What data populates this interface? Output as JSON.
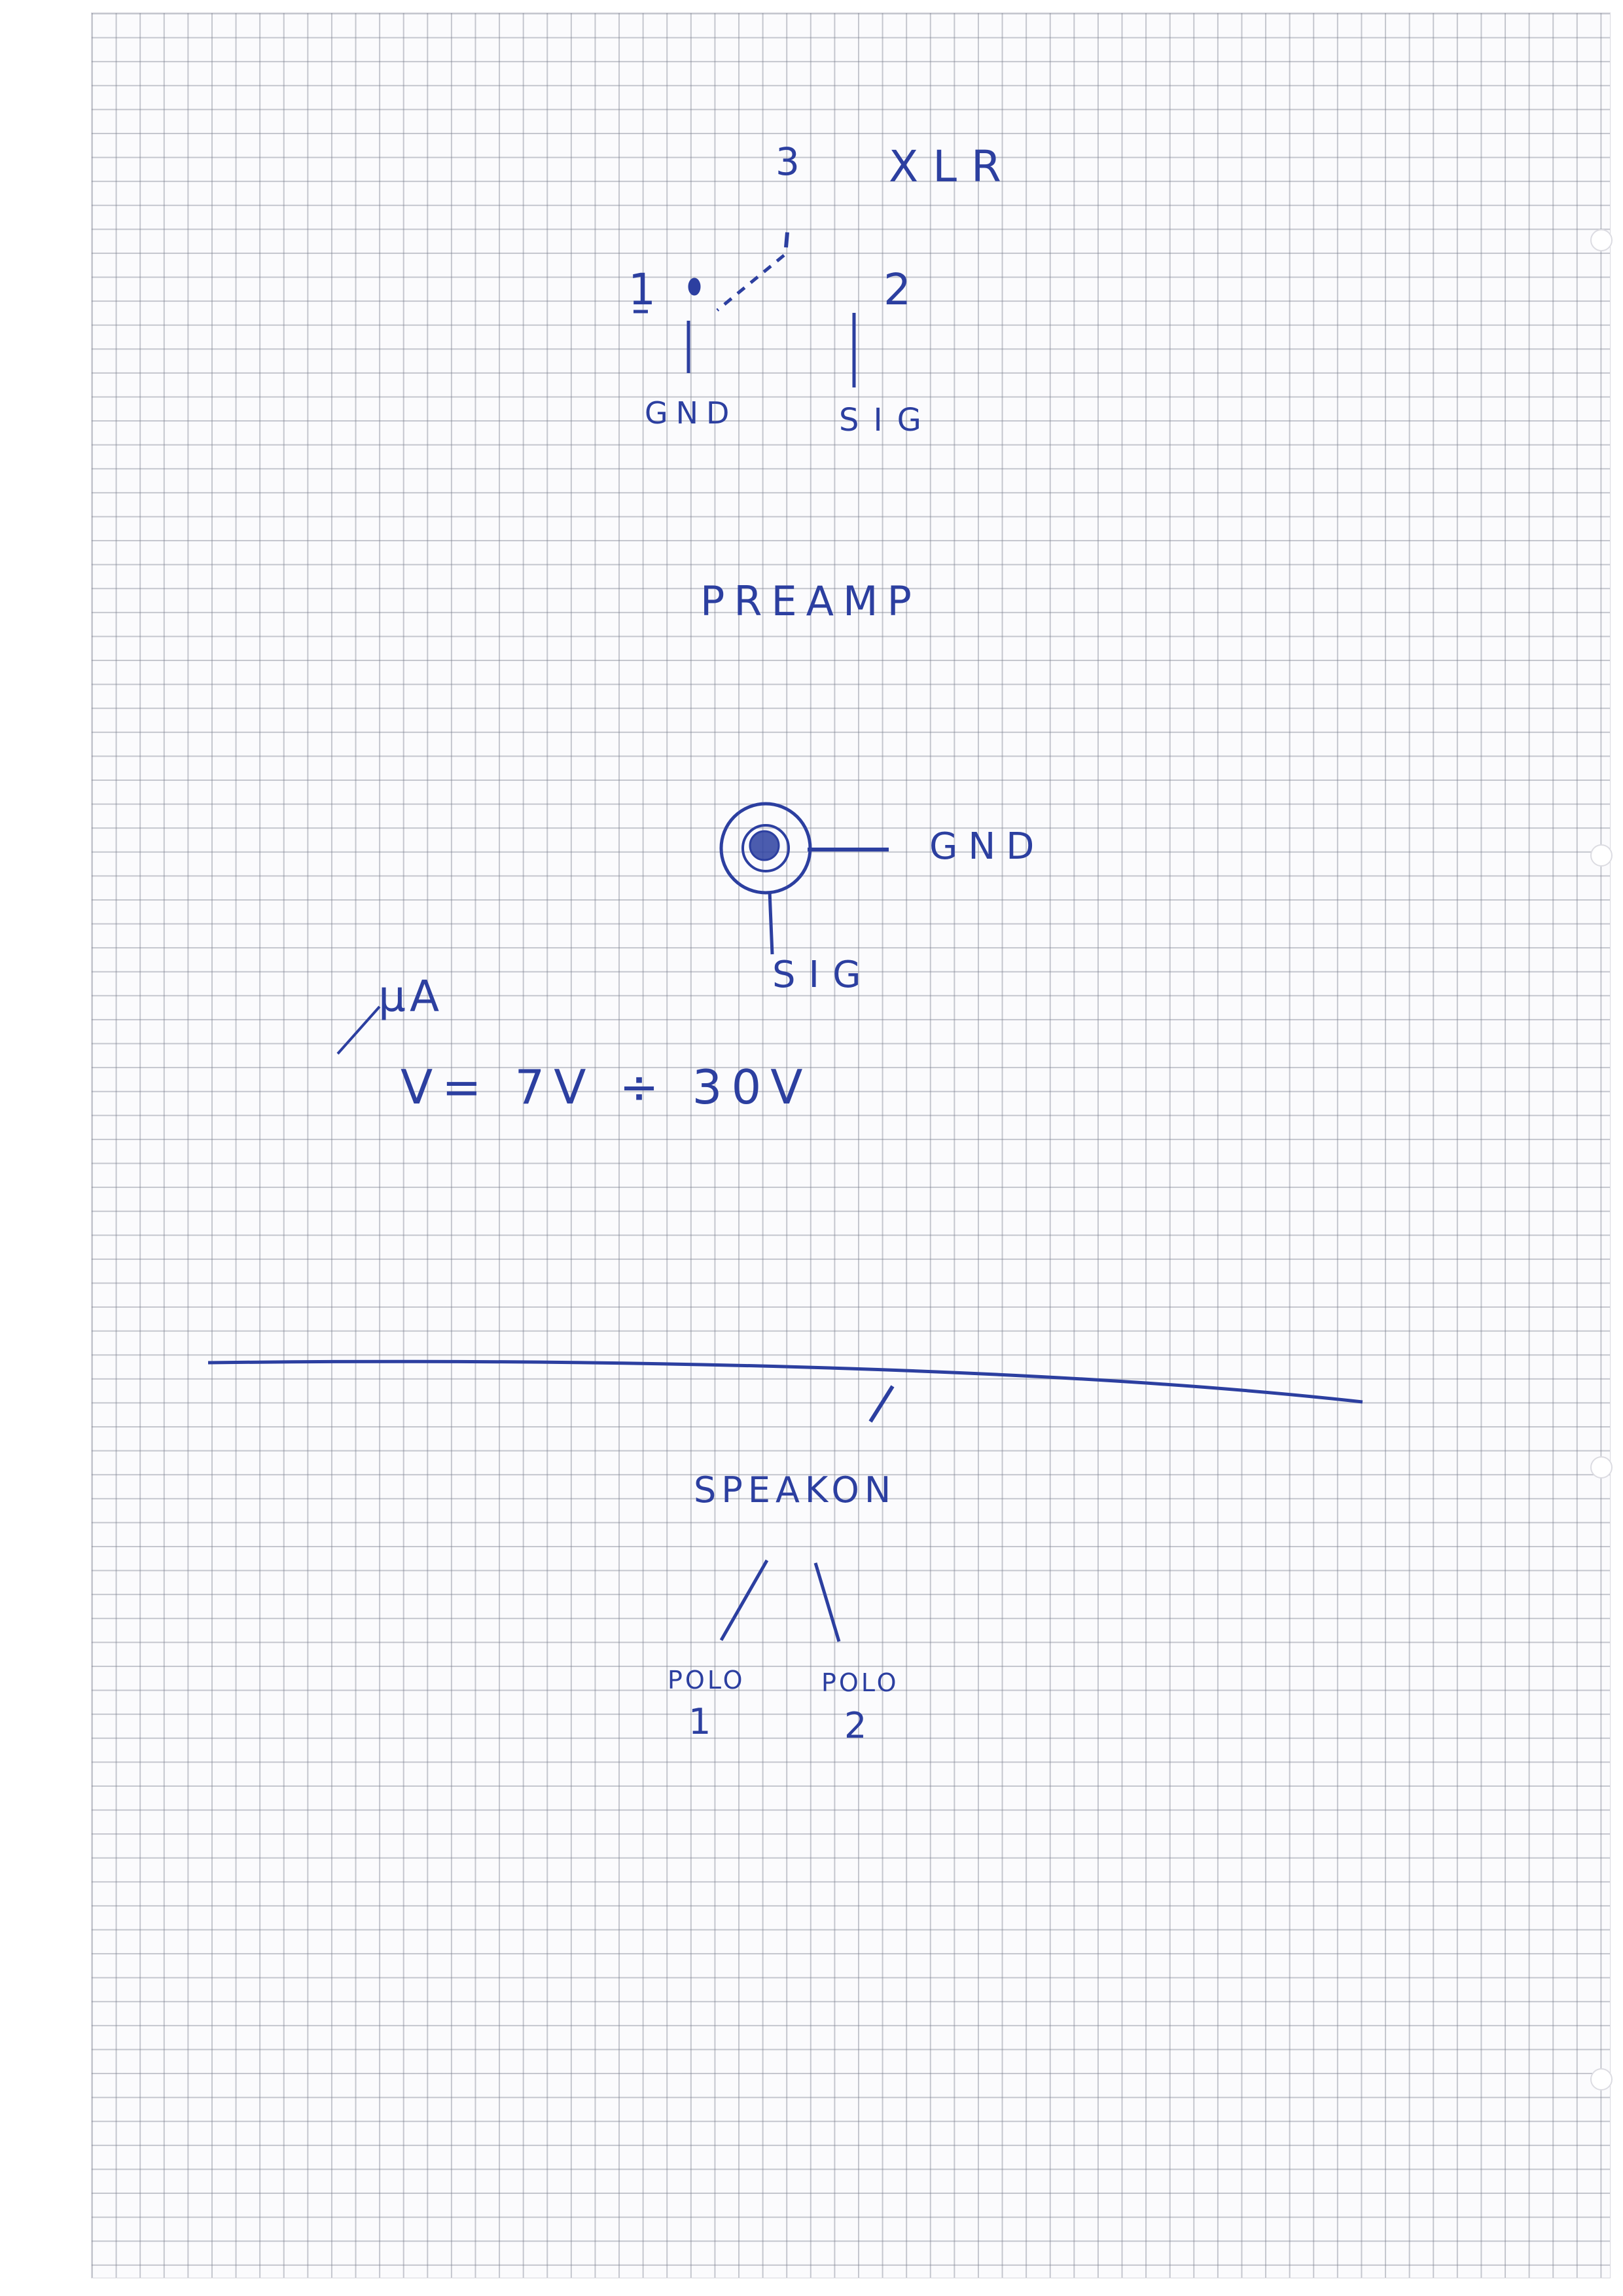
{
  "sheet": {
    "ink_color": "#2c3fa0",
    "paper_color": "#fbfbfd",
    "grid_color": "#787d8c"
  },
  "xlr": {
    "title": "XLR",
    "pin1_label": "1",
    "pin2_label": "2",
    "pin3_label": "3",
    "gnd_label": "GND",
    "sig_label": "SIG"
  },
  "preamp": {
    "title": "PREAMP"
  },
  "jack": {
    "gnd_label": "GND",
    "sig_label": "SIG"
  },
  "supply": {
    "current_label": "µA",
    "voltage_label": "V= 7V ÷ 30V"
  },
  "speakon": {
    "title": "SPEAKON",
    "pole1_label": "POLO",
    "pole1_number": "1",
    "pole2_label": "POLO",
    "pole2_number": "2"
  }
}
